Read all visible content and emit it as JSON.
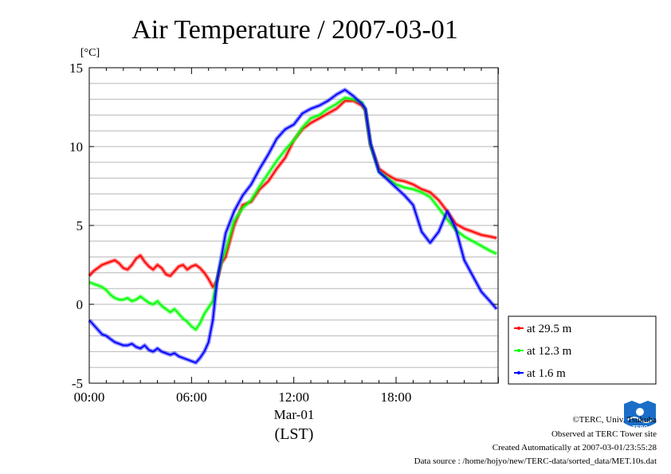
{
  "chart_data": {
    "type": "line",
    "title": "Air Temperature / 2007-03-01",
    "ylabel": "[°C]",
    "xlabel": "(LST)",
    "x_date_label": "Mar-01",
    "x_unit": "hours (LST)",
    "xlim": [
      0,
      23.983
    ],
    "ylim": [
      -5,
      15
    ],
    "xticks": [
      0,
      6,
      12,
      18
    ],
    "xtick_labels": [
      "00:00",
      "06:00",
      "12:00",
      "18:00"
    ],
    "yticks": [
      -5,
      0,
      5,
      10,
      15
    ],
    "ytick_labels": [
      "-5",
      "0",
      "5",
      "10",
      "15"
    ],
    "grid": true,
    "legend_position": "right, lower",
    "series": [
      {
        "name": "at 29.5 m",
        "color": "#ff0000",
        "x": [
          0,
          0.25,
          0.5,
          0.75,
          1,
          1.25,
          1.5,
          1.75,
          2,
          2.25,
          2.5,
          2.75,
          3,
          3.25,
          3.5,
          3.75,
          4,
          4.25,
          4.5,
          4.75,
          5,
          5.25,
          5.5,
          5.75,
          6,
          6.25,
          6.5,
          6.75,
          7,
          7.25,
          7.5,
          7.75,
          8,
          8.5,
          9,
          9.5,
          10,
          10.5,
          11,
          11.5,
          12,
          12.5,
          13,
          13.5,
          14,
          14.5,
          15,
          15.5,
          16,
          16.2,
          16.5,
          17,
          17.5,
          18,
          18.5,
          19,
          19.5,
          20,
          20.5,
          21,
          21.5,
          22,
          22.5,
          23,
          23.5,
          23.9
        ],
        "y": [
          1.8,
          2.1,
          2.3,
          2.5,
          2.6,
          2.7,
          2.8,
          2.6,
          2.3,
          2.2,
          2.5,
          2.9,
          3.1,
          2.7,
          2.4,
          2.2,
          2.5,
          2.3,
          1.9,
          1.8,
          2.1,
          2.4,
          2.5,
          2.2,
          2.4,
          2.5,
          2.3,
          2.0,
          1.6,
          1.1,
          1.5,
          2.6,
          3.0,
          5.0,
          6.3,
          6.5,
          7.3,
          7.8,
          8.6,
          9.3,
          10.4,
          11.1,
          11.5,
          11.8,
          12.1,
          12.4,
          12.9,
          12.9,
          12.6,
          12.3,
          10.1,
          8.6,
          8.2,
          7.9,
          7.8,
          7.6,
          7.3,
          7.1,
          6.6,
          5.9,
          5.1,
          4.8,
          4.6,
          4.4,
          4.3,
          4.2
        ]
      },
      {
        "name": "at 12.3 m",
        "color": "#00ff00",
        "x": [
          0,
          0.25,
          0.5,
          0.75,
          1,
          1.25,
          1.5,
          1.75,
          2,
          2.25,
          2.5,
          2.75,
          3,
          3.25,
          3.5,
          3.75,
          4,
          4.25,
          4.5,
          4.75,
          5,
          5.25,
          5.5,
          5.75,
          6,
          6.25,
          6.5,
          6.75,
          7,
          7.25,
          7.5,
          7.75,
          8,
          8.5,
          9,
          9.5,
          10,
          10.5,
          11,
          11.5,
          12,
          12.5,
          13,
          13.5,
          14,
          14.5,
          15,
          15.5,
          16,
          16.2,
          16.5,
          17,
          17.5,
          18,
          18.5,
          19,
          19.5,
          20,
          20.5,
          21,
          21.5,
          22,
          22.5,
          23,
          23.5,
          23.9
        ],
        "y": [
          1.4,
          1.3,
          1.2,
          1.1,
          0.9,
          0.6,
          0.4,
          0.3,
          0.3,
          0.4,
          0.2,
          0.3,
          0.5,
          0.3,
          0.1,
          0.0,
          0.2,
          -0.1,
          -0.3,
          -0.5,
          -0.3,
          -0.6,
          -0.9,
          -1.1,
          -1.4,
          -1.6,
          -1.2,
          -0.6,
          -0.2,
          0.2,
          1.6,
          2.7,
          3.4,
          5.3,
          6.1,
          6.6,
          7.5,
          8.3,
          9.1,
          9.8,
          10.4,
          11.2,
          11.8,
          12.0,
          12.4,
          12.7,
          13.1,
          13.0,
          12.8,
          12.3,
          10.1,
          8.4,
          8.0,
          7.6,
          7.4,
          7.3,
          7.1,
          6.8,
          6.1,
          5.4,
          4.7,
          4.3,
          4.0,
          3.7,
          3.4,
          3.2
        ]
      },
      {
        "name": "at 1.6 m",
        "color": "#0000ff",
        "x": [
          0,
          0.25,
          0.5,
          0.75,
          1,
          1.25,
          1.5,
          1.75,
          2,
          2.25,
          2.5,
          2.75,
          3,
          3.25,
          3.5,
          3.75,
          4,
          4.25,
          4.5,
          4.75,
          5,
          5.25,
          5.5,
          5.75,
          6,
          6.25,
          6.5,
          6.75,
          7,
          7.25,
          7.5,
          7.75,
          8,
          8.5,
          9,
          9.5,
          10,
          10.5,
          11,
          11.5,
          12,
          12.5,
          13,
          13.5,
          14,
          14.5,
          15,
          15.5,
          16,
          16.2,
          16.5,
          17,
          17.5,
          18,
          18.5,
          19,
          19.5,
          20,
          20.5,
          21,
          21.5,
          22,
          22.5,
          23,
          23.5,
          23.9
        ],
        "y": [
          -1.0,
          -1.3,
          -1.6,
          -1.9,
          -2.0,
          -2.2,
          -2.4,
          -2.5,
          -2.6,
          -2.6,
          -2.5,
          -2.7,
          -2.8,
          -2.6,
          -2.9,
          -3.0,
          -2.8,
          -3.0,
          -3.1,
          -3.2,
          -3.1,
          -3.3,
          -3.4,
          -3.5,
          -3.6,
          -3.7,
          -3.4,
          -3.0,
          -2.4,
          -1.0,
          1.5,
          3.0,
          4.5,
          5.9,
          6.9,
          7.6,
          8.6,
          9.5,
          10.5,
          11.1,
          11.4,
          12.1,
          12.4,
          12.6,
          12.9,
          13.3,
          13.6,
          13.2,
          12.7,
          12.4,
          10.2,
          8.4,
          7.9,
          7.4,
          6.9,
          6.3,
          4.6,
          3.9,
          4.6,
          5.9,
          4.8,
          2.8,
          1.8,
          0.8,
          0.2,
          -0.3
        ]
      }
    ]
  },
  "footer": {
    "copyright": "©TERC, Univ. Tsukuba",
    "observed": "Observed at TERC Tower site",
    "created": "Created Automatically at 2007-03-01/23:55:28",
    "source": "Data source : /home/hojyo/new/TERC-data/sorted_data/MET.10s.dat"
  },
  "logo": {
    "text": "TERC",
    "color": "#1a6ec8"
  }
}
